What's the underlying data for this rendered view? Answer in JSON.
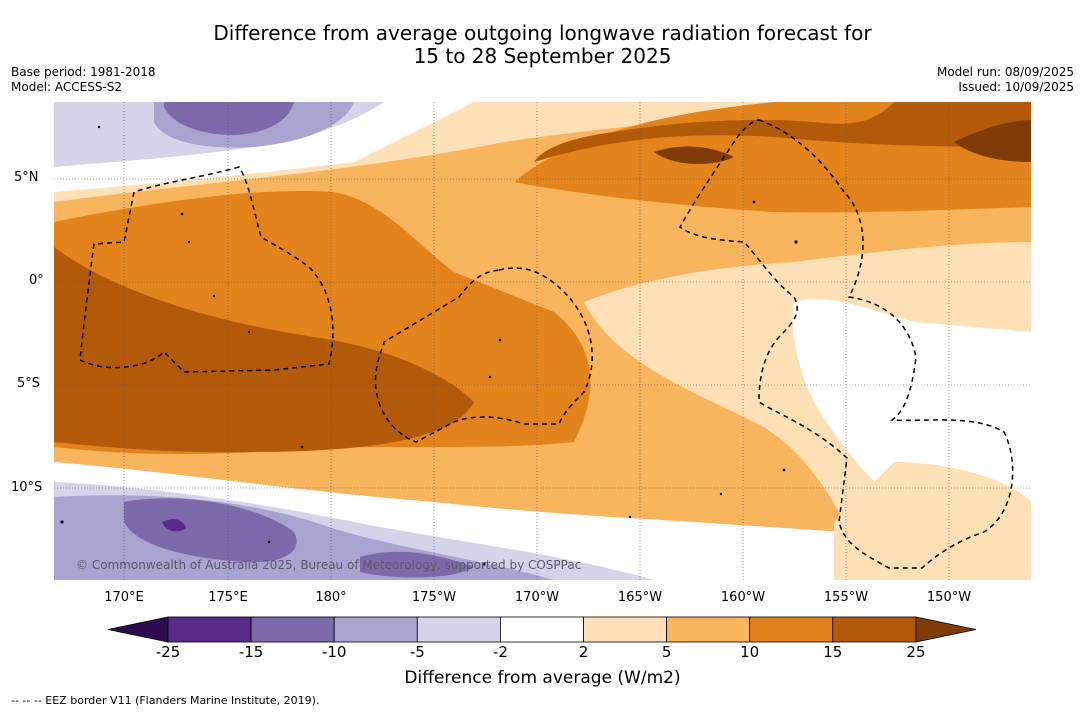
{
  "title_line1": "Difference from average outgoing longwave radiation forecast for",
  "title_line2": "15 to 28 September 2025",
  "left_info": {
    "base_period": "Base period: 1981-2018",
    "model": "Model: ACCESS-S2"
  },
  "right_info": {
    "model_run": "Model run: 08/09/2025",
    "issued": "Issued: 10/09/2025"
  },
  "lat_labels": [
    "5°N",
    "0°",
    "5°S",
    "10°S"
  ],
  "lon_labels": [
    "170°E",
    "175°E",
    "180°",
    "175°W",
    "170°W",
    "165°W",
    "160°W",
    "155°W",
    "150°W"
  ],
  "copyright": "© Commonwealth of Australia 2025, Bureau of Meteorology, supported by COSPPac",
  "colorbar": {
    "ticks": [
      "-25",
      "-15",
      "-10",
      "-5",
      "-2",
      "2",
      "5",
      "10",
      "15",
      "25"
    ],
    "colors": [
      "#2d0a4e",
      "#5a2a8a",
      "#7c6aaa",
      "#a9a3cf",
      "#d4d3ea",
      "#ffffff",
      "#fde0b6",
      "#f9b45e",
      "#e3831c",
      "#b35a0a",
      "#7f3b08"
    ],
    "label": "Difference from average (W/m2)"
  },
  "legend_footer": "--  --  -- EEZ border V11 (Flanders Marine Institute, 2019)."
}
